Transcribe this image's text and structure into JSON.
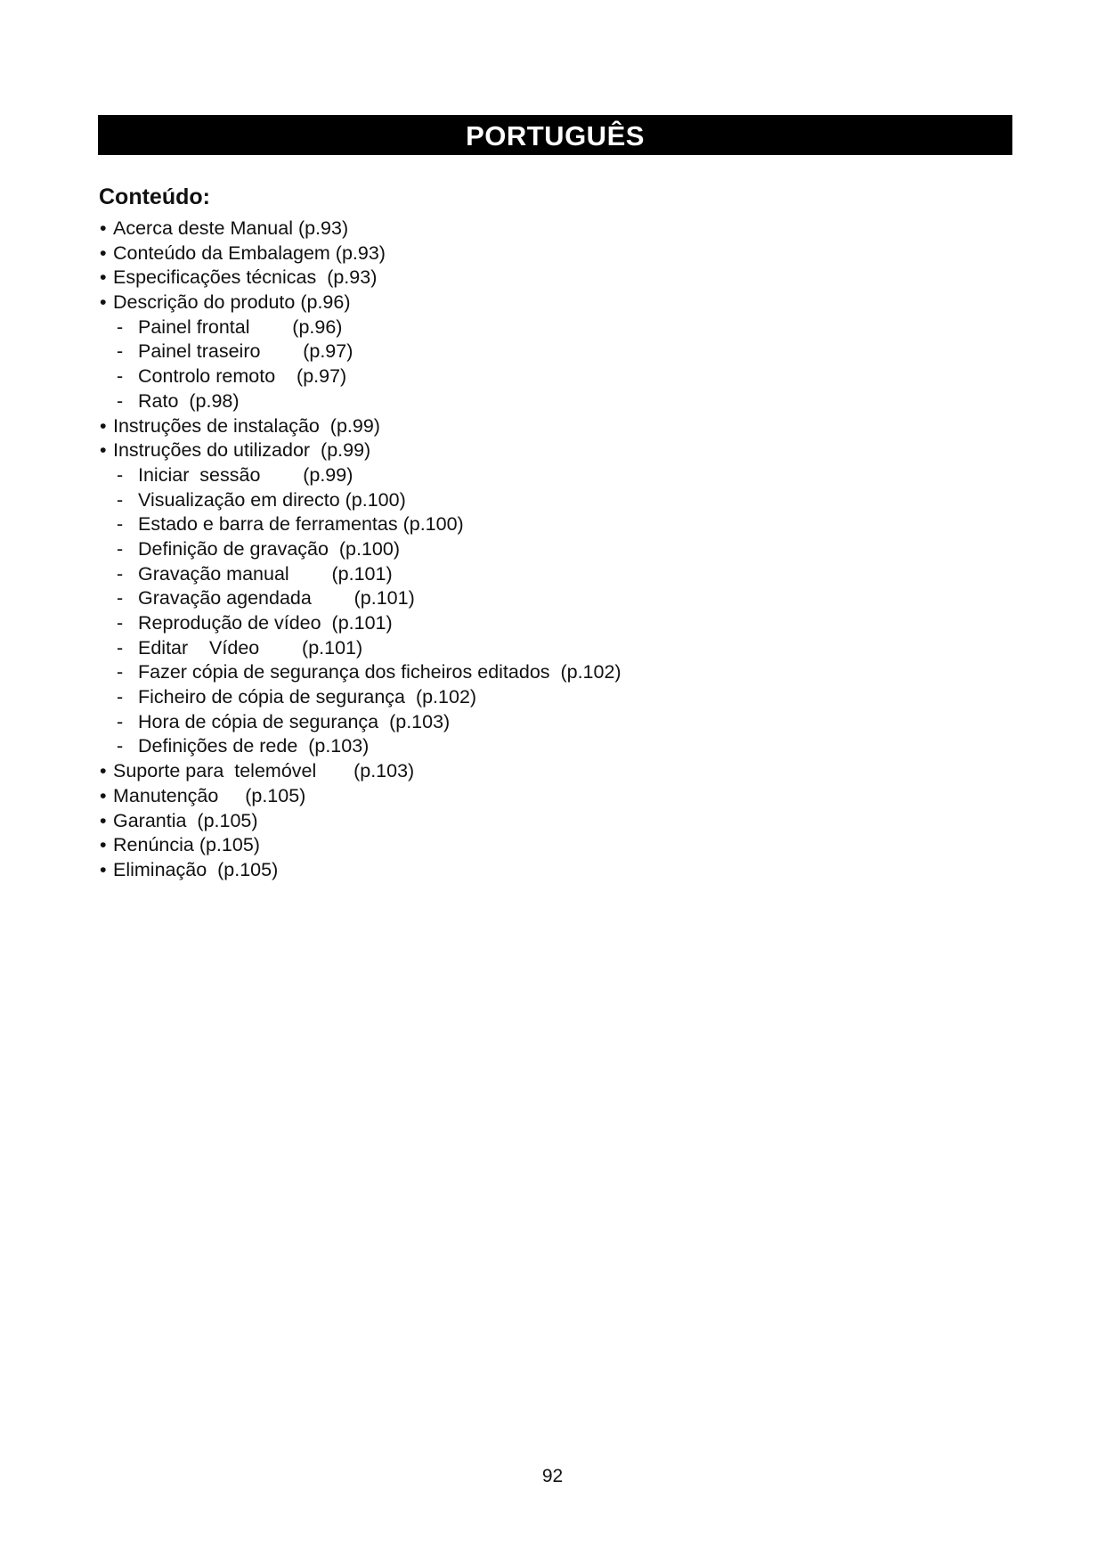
{
  "header": {
    "title": "PORTUGUÊS"
  },
  "contents": {
    "heading": "Conteúdo:",
    "items": [
      {
        "level": 1,
        "text": "Acerca deste Manual (p.93)"
      },
      {
        "level": 1,
        "text": "Conteúdo da Embalagem (p.93)"
      },
      {
        "level": 1,
        "text": "Especificações técnicas  (p.93)"
      },
      {
        "level": 1,
        "text": "Descrição do produto (p.96)"
      },
      {
        "level": 2,
        "text": "Painel frontal        (p.96)"
      },
      {
        "level": 2,
        "text": "Painel traseiro        (p.97)"
      },
      {
        "level": 2,
        "text": "Controlo remoto    (p.97)"
      },
      {
        "level": 2,
        "text": "Rato  (p.98)"
      },
      {
        "level": 1,
        "text": "Instruções de instalação  (p.99)"
      },
      {
        "level": 1,
        "text": "Instruções do utilizador  (p.99)"
      },
      {
        "level": 2,
        "text": "Iniciar  sessão        (p.99)"
      },
      {
        "level": 2,
        "text": "Visualização em directo (p.100)"
      },
      {
        "level": 2,
        "text": "Estado e barra de ferramentas (p.100)"
      },
      {
        "level": 2,
        "text": "Definição de gravação  (p.100)"
      },
      {
        "level": 2,
        "text": "Gravação manual        (p.101)"
      },
      {
        "level": 2,
        "text": "Gravação agendada        (p.101)"
      },
      {
        "level": 2,
        "text": "Reprodução de vídeo  (p.101)"
      },
      {
        "level": 2,
        "text": "Editar    Vídeo        (p.101)"
      },
      {
        "level": 2,
        "text": "Fazer cópia de segurança dos ficheiros editados  (p.102)"
      },
      {
        "level": 2,
        "text": "Ficheiro de cópia de segurança  (p.102)"
      },
      {
        "level": 2,
        "text": "Hora de cópia de segurança  (p.103)"
      },
      {
        "level": 2,
        "text": "Definições de rede  (p.103)"
      },
      {
        "level": 1,
        "text": "Suporte para  telemóvel       (p.103)"
      },
      {
        "level": 1,
        "text": "Manutenção     (p.105)"
      },
      {
        "level": 1,
        "text": "Garantia  (p.105)"
      },
      {
        "level": 1,
        "text": "Renúncia (p.105)"
      },
      {
        "level": 1,
        "text": "Eliminação  (p.105)"
      }
    ]
  },
  "footer": {
    "page_number": "92"
  }
}
